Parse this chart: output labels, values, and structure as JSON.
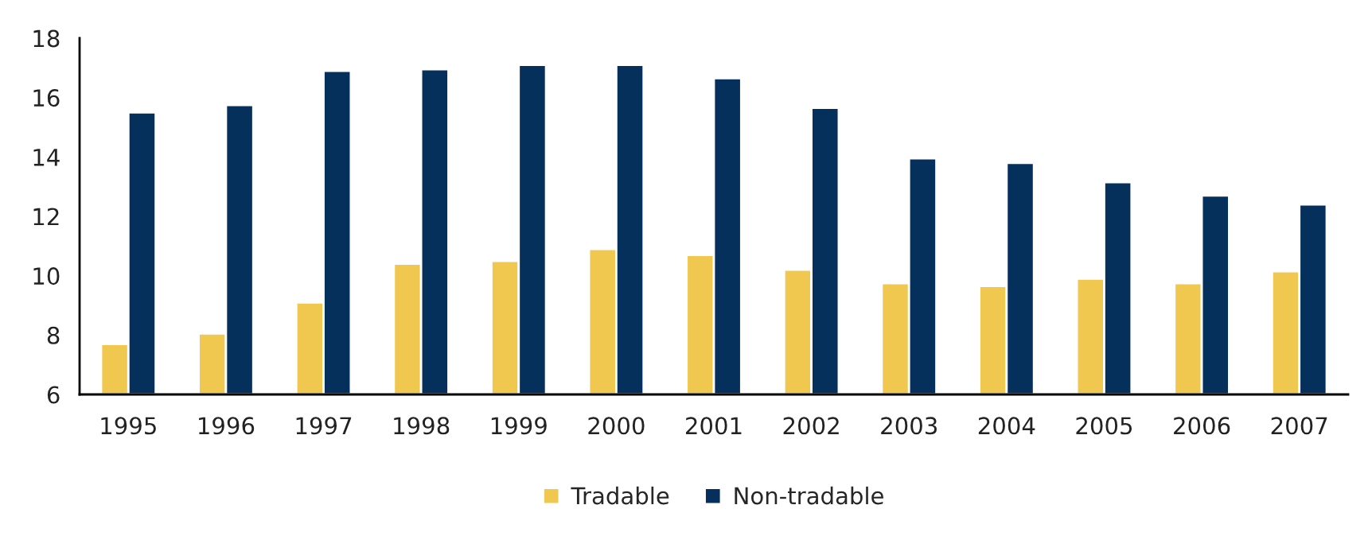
{
  "chart_data": {
    "type": "bar",
    "categories": [
      "1995",
      "1996",
      "1997",
      "1998",
      "1999",
      "2000",
      "2001",
      "2002",
      "2003",
      "2004",
      "2005",
      "2006",
      "2007"
    ],
    "series": [
      {
        "name": "Tradable",
        "color": "#f0c850",
        "values": [
          7.7,
          8.05,
          9.1,
          10.4,
          10.5,
          10.9,
          10.7,
          10.2,
          9.75,
          9.65,
          9.9,
          9.75,
          10.15
        ]
      },
      {
        "name": "Non-tradable",
        "color": "#06305c",
        "values": [
          15.5,
          15.75,
          16.9,
          16.95,
          17.1,
          17.1,
          16.65,
          15.65,
          13.95,
          13.8,
          13.15,
          12.7,
          12.4
        ]
      }
    ],
    "ylim": [
      6,
      18
    ],
    "yticks": [
      6,
      8,
      10,
      12,
      14,
      16,
      18
    ],
    "grid": false,
    "legend": "bottom"
  }
}
